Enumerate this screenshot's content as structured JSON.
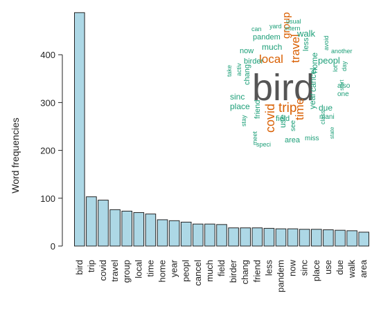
{
  "chart_data": {
    "type": "bar",
    "ylabel": "Word frequencies",
    "ylim": [
      0,
      500
    ],
    "yticks": [
      0,
      100,
      200,
      300,
      400
    ],
    "categories": [
      "bird",
      "trip",
      "covid",
      "travel",
      "group",
      "local",
      "time",
      "home",
      "year",
      "peopl",
      "cancel",
      "much",
      "field",
      "birder",
      "chang",
      "friend",
      "less",
      "pandem",
      "now",
      "sinc",
      "place",
      "use",
      "due",
      "walk",
      "area"
    ],
    "values": [
      488,
      103,
      96,
      76,
      73,
      70,
      67,
      55,
      53,
      50,
      46,
      46,
      45,
      38,
      38,
      38,
      37,
      36,
      36,
      35,
      35,
      34,
      33,
      32,
      29
    ],
    "bar_color": "#add8e6"
  },
  "wordcloud": {
    "colors": {
      "large": "#555555",
      "medium": "#d95f02",
      "small": "#1b9e77"
    },
    "words": [
      {
        "text": "bird",
        "tier": "large"
      },
      {
        "text": "trip",
        "tier": "medium"
      },
      {
        "text": "covid",
        "tier": "medium"
      },
      {
        "text": "travel",
        "tier": "medium"
      },
      {
        "text": "group",
        "tier": "medium"
      },
      {
        "text": "local",
        "tier": "medium"
      },
      {
        "text": "time",
        "tier": "medium"
      },
      {
        "text": "home",
        "tier": "small"
      },
      {
        "text": "year",
        "tier": "small"
      },
      {
        "text": "peopl",
        "tier": "small"
      },
      {
        "text": "cancel",
        "tier": "small"
      },
      {
        "text": "much",
        "tier": "small"
      },
      {
        "text": "field",
        "tier": "small"
      },
      {
        "text": "birder",
        "tier": "small"
      },
      {
        "text": "chang",
        "tier": "small"
      },
      {
        "text": "friend",
        "tier": "small"
      },
      {
        "text": "less",
        "tier": "small"
      },
      {
        "text": "pandem",
        "tier": "small"
      },
      {
        "text": "now",
        "tier": "small"
      },
      {
        "text": "sinc",
        "tier": "small"
      },
      {
        "text": "place",
        "tier": "small"
      },
      {
        "text": "use",
        "tier": "small"
      },
      {
        "text": "due",
        "tier": "small"
      },
      {
        "text": "walk",
        "tier": "small"
      },
      {
        "text": "area",
        "tier": "small"
      },
      {
        "text": "can",
        "tier": "small"
      },
      {
        "text": "yard",
        "tier": "small"
      },
      {
        "text": "usual",
        "tier": "small"
      },
      {
        "text": "intern",
        "tier": "small"
      },
      {
        "text": "avoid",
        "tier": "small"
      },
      {
        "text": "another",
        "tier": "small"
      },
      {
        "text": "day",
        "tier": "small"
      },
      {
        "text": "lot",
        "tier": "small"
      },
      {
        "text": "also",
        "tier": "small"
      },
      {
        "text": "start",
        "tier": "small"
      },
      {
        "text": "one",
        "tier": "small"
      },
      {
        "text": "take",
        "tier": "small"
      },
      {
        "text": "activ",
        "tier": "small"
      },
      {
        "text": "stay",
        "tier": "small"
      },
      {
        "text": "meet",
        "tier": "small"
      },
      {
        "text": "speci",
        "tier": "small"
      },
      {
        "text": "see",
        "tier": "small"
      },
      {
        "text": "miss",
        "tier": "small"
      },
      {
        "text": "class",
        "tier": "small"
      },
      {
        "text": "state",
        "tier": "small"
      },
      {
        "text": "mani",
        "tier": "small"
      }
    ]
  }
}
